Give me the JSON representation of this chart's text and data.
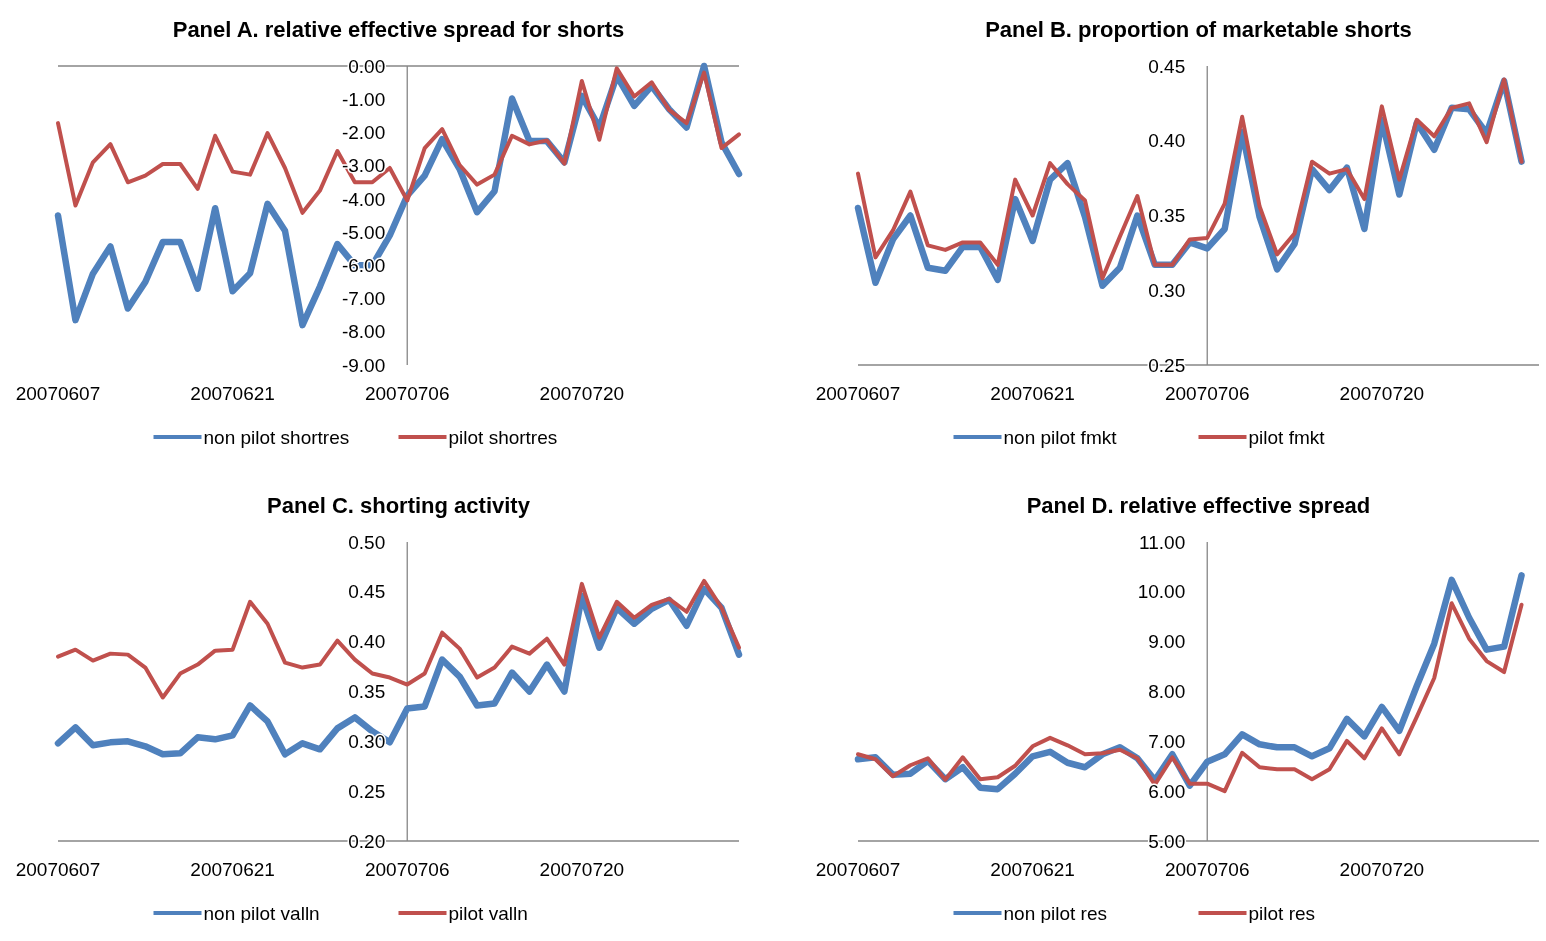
{
  "chart_data": [
    {
      "type": "line",
      "title": "Panel A. relative effective spread for shorts",
      "categories": [
        "20070607",
        null,
        null,
        null,
        null,
        null,
        null,
        null,
        null,
        null,
        "20070621",
        null,
        null,
        null,
        null,
        null,
        null,
        null,
        null,
        null,
        "20070706",
        null,
        null,
        null,
        null,
        null,
        null,
        null,
        null,
        null,
        "20070720",
        null,
        null,
        null,
        null,
        null,
        null,
        null,
        null,
        null
      ],
      "ylim": [
        -9,
        0
      ],
      "yticks": [
        {
          "value": 0,
          "label": "0.00"
        },
        {
          "value": -1,
          "label": "-1.00"
        },
        {
          "value": -2,
          "label": "-2.00"
        },
        {
          "value": -3,
          "label": "-3.00"
        },
        {
          "value": -4,
          "label": "-4.00"
        },
        {
          "value": -5,
          "label": "-5.00"
        },
        {
          "value": -6,
          "label": "-6.00"
        },
        {
          "value": -7,
          "label": "-7.00"
        },
        {
          "value": -8,
          "label": "-8.00"
        },
        {
          "value": -9,
          "label": "-9.00"
        }
      ],
      "legend": "bottom",
      "series": [
        {
          "name": "non pilot shortres",
          "color": "#4f81bd",
          "values": [
            -4.5,
            -7.65,
            -6.25,
            -5.43,
            -7.3,
            -6.5,
            -5.3,
            -5.3,
            -6.7,
            -4.28,
            -6.78,
            -6.24,
            -4.15,
            -4.96,
            -7.8,
            -6.64,
            -5.36,
            -6.0,
            -6.0,
            -5.1,
            -3.9,
            -3.3,
            -2.2,
            -3.1,
            -4.4,
            -3.77,
            -0.98,
            -2.26,
            -2.26,
            -2.9,
            -0.9,
            -1.85,
            -0.3,
            -1.2,
            -0.6,
            -1.3,
            -1.85,
            0.0,
            -2.3,
            -3.25
          ]
        },
        {
          "name": "pilot shortres",
          "color": "#c0504d",
          "values": [
            -1.72,
            -4.2,
            -2.9,
            -2.35,
            -3.5,
            -3.3,
            -2.95,
            -2.95,
            -3.7,
            -2.1,
            -3.18,
            -3.27,
            -2.02,
            -3.07,
            -4.42,
            -3.75,
            -2.56,
            -3.5,
            -3.5,
            -3.07,
            -4.05,
            -2.47,
            -1.9,
            -2.98,
            -3.57,
            -3.27,
            -2.1,
            -2.36,
            -2.24,
            -2.94,
            -0.45,
            -2.22,
            -0.07,
            -0.92,
            -0.49,
            -1.32,
            -1.72,
            -0.2,
            -2.47,
            -2.06
          ]
        }
      ]
    },
    {
      "type": "line",
      "title": "Panel B. proportion of marketable shorts",
      "categories": [
        "20070607",
        null,
        null,
        null,
        null,
        null,
        null,
        null,
        null,
        null,
        "20070621",
        null,
        null,
        null,
        null,
        null,
        null,
        null,
        null,
        null,
        "20070706",
        null,
        null,
        null,
        null,
        null,
        null,
        null,
        null,
        null,
        "20070720",
        null,
        null,
        null,
        null,
        null,
        null,
        null,
        null,
        null
      ],
      "ylim": [
        0.25,
        0.45
      ],
      "yticks": [
        {
          "value": 0.25,
          "label": "0.25"
        },
        {
          "value": 0.3,
          "label": "0.30"
        },
        {
          "value": 0.35,
          "label": "0.35"
        },
        {
          "value": 0.4,
          "label": "0.40"
        },
        {
          "value": 0.45,
          "label": "0.45"
        }
      ],
      "legend": "bottom",
      "series": [
        {
          "name": "non pilot fmkt",
          "color": "#4f81bd",
          "values": [
            0.355,
            0.305,
            0.334,
            0.35,
            0.315,
            0.313,
            0.329,
            0.329,
            0.307,
            0.361,
            0.333,
            0.374,
            0.385,
            0.349,
            0.303,
            0.315,
            0.35,
            0.317,
            0.317,
            0.332,
            0.328,
            0.341,
            0.406,
            0.349,
            0.314,
            0.331,
            0.381,
            0.367,
            0.382,
            0.341,
            0.414,
            0.364,
            0.412,
            0.394,
            0.422,
            0.421,
            0.405,
            0.44,
            0.386,
            null
          ]
        },
        {
          "name": "pilot fmkt",
          "color": "#c0504d",
          "values": [
            0.378,
            0.322,
            0.34,
            0.366,
            0.33,
            0.327,
            0.332,
            0.332,
            0.317,
            0.374,
            0.35,
            0.385,
            0.371,
            0.36,
            0.308,
            0.336,
            0.363,
            0.317,
            0.317,
            0.334,
            0.335,
            0.358,
            0.416,
            0.356,
            0.324,
            0.338,
            0.386,
            0.378,
            0.381,
            0.361,
            0.423,
            0.374,
            0.414,
            0.403,
            0.422,
            0.425,
            0.399,
            0.441,
            0.386,
            null
          ]
        }
      ]
    },
    {
      "type": "line",
      "title": "Panel C. shorting activity",
      "categories": [
        "20070607",
        null,
        null,
        null,
        null,
        null,
        null,
        null,
        null,
        null,
        "20070621",
        null,
        null,
        null,
        null,
        null,
        null,
        null,
        null,
        null,
        "20070706",
        null,
        null,
        null,
        null,
        null,
        null,
        null,
        null,
        null,
        "20070720",
        null,
        null,
        null,
        null,
        null,
        null,
        null,
        null,
        null
      ],
      "ylim": [
        0.2,
        0.5
      ],
      "yticks": [
        {
          "value": 0.2,
          "label": "0.20"
        },
        {
          "value": 0.25,
          "label": "0.25"
        },
        {
          "value": 0.3,
          "label": "0.30"
        },
        {
          "value": 0.35,
          "label": "0.35"
        },
        {
          "value": 0.4,
          "label": "0.40"
        },
        {
          "value": 0.45,
          "label": "0.45"
        },
        {
          "value": 0.5,
          "label": "0.50"
        }
      ],
      "legend": "bottom",
      "series": [
        {
          "name": "non pilot valln",
          "color": "#4f81bd",
          "values": [
            0.298,
            0.314,
            0.296,
            0.299,
            0.3,
            0.295,
            0.287,
            0.288,
            0.304,
            0.302,
            0.306,
            0.336,
            0.32,
            0.287,
            0.298,
            0.292,
            0.313,
            0.324,
            0.31,
            0.299,
            0.333,
            0.335,
            0.382,
            0.365,
            0.336,
            0.338,
            0.369,
            0.35,
            0.377,
            0.35,
            0.446,
            0.394,
            0.434,
            0.418,
            0.433,
            0.442,
            0.416,
            0.453,
            0.434,
            0.387
          ]
        },
        {
          "name": "pilot valln",
          "color": "#c0504d",
          "values": [
            0.385,
            0.392,
            0.381,
            0.388,
            0.387,
            0.374,
            0.344,
            0.368,
            0.377,
            0.391,
            0.392,
            0.44,
            0.418,
            0.379,
            0.374,
            0.377,
            0.401,
            0.382,
            0.368,
            0.364,
            0.357,
            0.368,
            0.409,
            0.393,
            0.364,
            0.374,
            0.395,
            0.388,
            0.403,
            0.377,
            0.458,
            0.404,
            0.44,
            0.424,
            0.437,
            0.443,
            0.43,
            0.461,
            0.434,
            0.394
          ]
        }
      ]
    },
    {
      "type": "line",
      "title": "Panel D. relative effective spread",
      "categories": [
        "20070607",
        null,
        null,
        null,
        null,
        null,
        null,
        null,
        null,
        null,
        "20070621",
        null,
        null,
        null,
        null,
        null,
        null,
        null,
        null,
        null,
        "20070706",
        null,
        null,
        null,
        null,
        null,
        null,
        null,
        null,
        null,
        "20070720",
        null,
        null,
        null,
        null,
        null,
        null,
        null,
        null,
        null
      ],
      "ylim": [
        5,
        11
      ],
      "yticks": [
        {
          "value": 5,
          "label": "5.00"
        },
        {
          "value": 6,
          "label": "6.00"
        },
        {
          "value": 7,
          "label": "7.00"
        },
        {
          "value": 8,
          "label": "8.00"
        },
        {
          "value": 9,
          "label": "9.00"
        },
        {
          "value": 10,
          "label": "10.00"
        },
        {
          "value": 11,
          "label": "11.00"
        }
      ],
      "legend": "bottom",
      "series": [
        {
          "name": "non pilot res",
          "color": "#4f81bd",
          "values": [
            6.64,
            6.68,
            6.33,
            6.35,
            6.61,
            6.24,
            6.48,
            6.07,
            6.04,
            6.35,
            6.7,
            6.79,
            6.57,
            6.48,
            6.74,
            6.88,
            6.66,
            6.22,
            6.74,
            6.11,
            6.59,
            6.74,
            7.14,
            6.94,
            6.88,
            6.88,
            6.7,
            6.86,
            7.45,
            7.1,
            7.69,
            7.21,
            8.11,
            8.96,
            10.24,
            9.48,
            8.84,
            8.9,
            10.33,
            null
          ]
        },
        {
          "name": "pilot res",
          "color": "#c0504d",
          "values": [
            6.74,
            6.64,
            6.3,
            6.52,
            6.66,
            6.23,
            6.68,
            6.24,
            6.28,
            6.51,
            6.9,
            7.07,
            6.92,
            6.74,
            6.76,
            6.83,
            6.66,
            6.13,
            6.68,
            6.15,
            6.15,
            6.0,
            6.77,
            6.48,
            6.44,
            6.44,
            6.24,
            6.44,
            7.01,
            6.66,
            7.26,
            6.74,
            7.49,
            8.27,
            9.77,
            9.06,
            8.61,
            8.39,
            9.74,
            null
          ]
        }
      ]
    }
  ]
}
